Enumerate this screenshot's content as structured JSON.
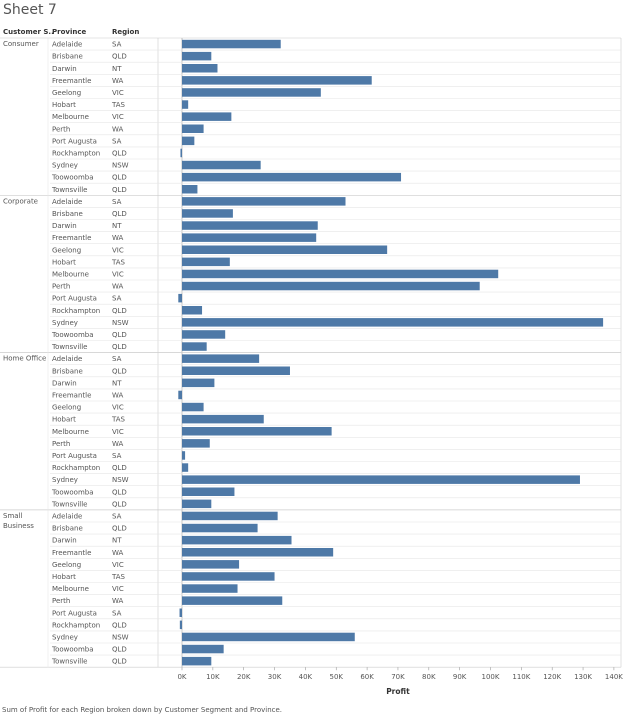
{
  "sheet": {
    "title": "Sheet 7",
    "caption": "Sum of Profit for each Region broken down by Customer Segment and Province."
  },
  "headers": {
    "segment": "Customer S..",
    "province": "Province",
    "region": "Region"
  },
  "colors": {
    "bar": "#4e79a7",
    "grid": "#e6e6e6",
    "separator": "#cccccc",
    "text": "#555555"
  },
  "chart_data": {
    "type": "bar",
    "orientation": "horizontal",
    "xlabel": "Profit",
    "ylabel": "",
    "title": "",
    "xlim": [
      -2000,
      142000
    ],
    "x_ticks": [
      0,
      10000,
      20000,
      30000,
      40000,
      50000,
      60000,
      70000,
      80000,
      90000,
      100000,
      110000,
      120000,
      130000,
      140000
    ],
    "x_tick_labels": [
      "0K",
      "10K",
      "20K",
      "30K",
      "40K",
      "50K",
      "60K",
      "70K",
      "80K",
      "90K",
      "100K",
      "110K",
      "120K",
      "130K",
      "140K"
    ],
    "grid": false,
    "segments": [
      {
        "name": "Consumer",
        "rows": [
          {
            "province": "Adelaide",
            "region": "SA",
            "profit": 32000
          },
          {
            "province": "Brisbane",
            "region": "QLD",
            "profit": 9500
          },
          {
            "province": "Darwin",
            "region": "NT",
            "profit": 11500
          },
          {
            "province": "Freemantle",
            "region": "WA",
            "profit": 61500
          },
          {
            "province": "Geelong",
            "region": "VIC",
            "profit": 45000
          },
          {
            "province": "Hobart",
            "region": "TAS",
            "profit": 2000
          },
          {
            "province": "Melbourne",
            "region": "VIC",
            "profit": 16000
          },
          {
            "province": "Perth",
            "region": "WA",
            "profit": 7000
          },
          {
            "province": "Port Augusta",
            "region": "SA",
            "profit": 4000
          },
          {
            "province": "Rockhampton",
            "region": "QLD",
            "profit": -500
          },
          {
            "province": "Sydney",
            "region": "NSW",
            "profit": 25500
          },
          {
            "province": "Toowoomba",
            "region": "QLD",
            "profit": 71000
          },
          {
            "province": "Townsville",
            "region": "QLD",
            "profit": 5000
          }
        ]
      },
      {
        "name": "Corporate",
        "rows": [
          {
            "province": "Adelaide",
            "region": "SA",
            "profit": 53000
          },
          {
            "province": "Brisbane",
            "region": "QLD",
            "profit": 16500
          },
          {
            "province": "Darwin",
            "region": "NT",
            "profit": 44000
          },
          {
            "province": "Freemantle",
            "region": "WA",
            "profit": 43500
          },
          {
            "province": "Geelong",
            "region": "VIC",
            "profit": 66500
          },
          {
            "province": "Hobart",
            "region": "TAS",
            "profit": 15500
          },
          {
            "province": "Melbourne",
            "region": "VIC",
            "profit": 102500
          },
          {
            "province": "Perth",
            "region": "WA",
            "profit": 96500
          },
          {
            "province": "Port Augusta",
            "region": "SA",
            "profit": -1200
          },
          {
            "province": "Rockhampton",
            "region": "QLD",
            "profit": 6500
          },
          {
            "province": "Sydney",
            "region": "NSW",
            "profit": 136500
          },
          {
            "province": "Toowoomba",
            "region": "QLD",
            "profit": 14000
          },
          {
            "province": "Townsville",
            "region": "QLD",
            "profit": 8000
          }
        ]
      },
      {
        "name": "Home Office",
        "rows": [
          {
            "province": "Adelaide",
            "region": "SA",
            "profit": 25000
          },
          {
            "province": "Brisbane",
            "region": "QLD",
            "profit": 35000
          },
          {
            "province": "Darwin",
            "region": "NT",
            "profit": 10500
          },
          {
            "province": "Freemantle",
            "region": "WA",
            "profit": -1200
          },
          {
            "province": "Geelong",
            "region": "VIC",
            "profit": 7000
          },
          {
            "province": "Hobart",
            "region": "TAS",
            "profit": 26500
          },
          {
            "province": "Melbourne",
            "region": "VIC",
            "profit": 48500
          },
          {
            "province": "Perth",
            "region": "WA",
            "profit": 9000
          },
          {
            "province": "Port Augusta",
            "region": "SA",
            "profit": 1000
          },
          {
            "province": "Rockhampton",
            "region": "QLD",
            "profit": 2000
          },
          {
            "province": "Sydney",
            "region": "NSW",
            "profit": 129000
          },
          {
            "province": "Toowoomba",
            "region": "QLD",
            "profit": 17000
          },
          {
            "province": "Townsville",
            "region": "QLD",
            "profit": 9500
          }
        ]
      },
      {
        "name": "Small Business",
        "rows": [
          {
            "province": "Adelaide",
            "region": "SA",
            "profit": 31000
          },
          {
            "province": "Brisbane",
            "region": "QLD",
            "profit": 24500
          },
          {
            "province": "Darwin",
            "region": "NT",
            "profit": 35500
          },
          {
            "province": "Freemantle",
            "region": "WA",
            "profit": 49000
          },
          {
            "province": "Geelong",
            "region": "VIC",
            "profit": 18500
          },
          {
            "province": "Hobart",
            "region": "TAS",
            "profit": 30000
          },
          {
            "province": "Melbourne",
            "region": "VIC",
            "profit": 18000
          },
          {
            "province": "Perth",
            "region": "WA",
            "profit": 32500
          },
          {
            "province": "Port Augusta",
            "region": "SA",
            "profit": -800
          },
          {
            "province": "Rockhampton",
            "region": "QLD",
            "profit": -700
          },
          {
            "province": "Sydney",
            "region": "NSW",
            "profit": 56000
          },
          {
            "province": "Toowoomba",
            "region": "QLD",
            "profit": 13500
          },
          {
            "province": "Townsville",
            "region": "QLD",
            "profit": 9500
          }
        ]
      }
    ]
  }
}
